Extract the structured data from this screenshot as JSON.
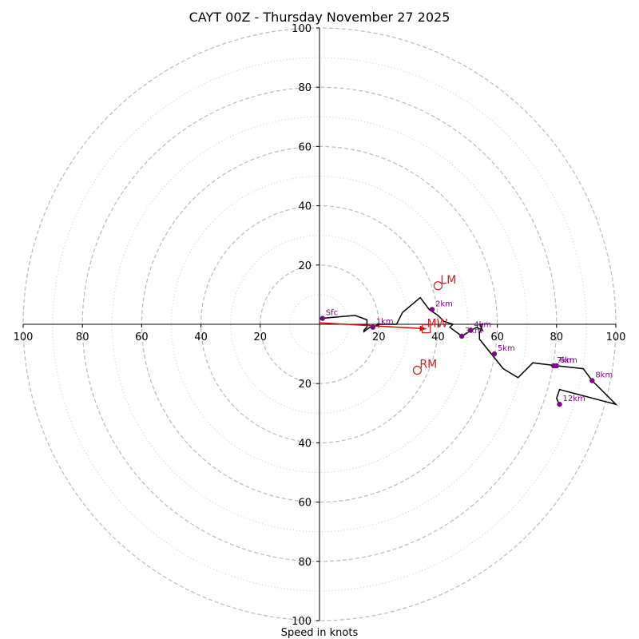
{
  "chart_data": {
    "type": "hodograph",
    "title": "CAYT 00Z - Thursday November 27 2025",
    "xlabel": "Speed in knots",
    "axis_range": [
      -100,
      100
    ],
    "rings_major": [
      20,
      40,
      60,
      80,
      100
    ],
    "rings_minor": [
      10,
      30,
      50,
      70,
      90
    ],
    "ticks": [
      {
        "value": -100,
        "label": "100"
      },
      {
        "value": -80,
        "label": "80"
      },
      {
        "value": -60,
        "label": "60"
      },
      {
        "value": -40,
        "label": "40"
      },
      {
        "value": -20,
        "label": "20"
      },
      {
        "value": 20,
        "label": "20"
      },
      {
        "value": 40,
        "label": "40"
      },
      {
        "value": 60,
        "label": "60"
      },
      {
        "value": 80,
        "label": "80"
      },
      {
        "value": 100,
        "label": "100"
      }
    ],
    "hodograph_uv": [
      [
        0.5,
        2
      ],
      [
        12,
        3
      ],
      [
        16,
        1.5
      ],
      [
        16,
        -1
      ],
      [
        15,
        -2
      ],
      [
        15,
        -2.5
      ],
      [
        17,
        -1
      ],
      [
        18,
        -1
      ],
      [
        20,
        0
      ],
      [
        26,
        0
      ],
      [
        28,
        4
      ],
      [
        34,
        9
      ],
      [
        37,
        5
      ],
      [
        40,
        3
      ],
      [
        42,
        1
      ],
      [
        45,
        0
      ],
      [
        44,
        -1
      ],
      [
        48,
        -4
      ],
      [
        53,
        -1
      ],
      [
        55,
        -2
      ],
      [
        54,
        0
      ],
      [
        55,
        0
      ],
      [
        54,
        -3
      ],
      [
        54,
        -5
      ],
      [
        58,
        -10
      ],
      [
        62,
        -15
      ],
      [
        67,
        -18
      ],
      [
        72,
        -13
      ],
      [
        80,
        -14
      ],
      [
        89,
        -15
      ],
      [
        92,
        -19
      ],
      [
        100,
        -27
      ],
      [
        81,
        -22
      ],
      [
        80,
        -25
      ],
      [
        81,
        -27
      ]
    ],
    "height_markers": [
      {
        "label": "Sfc",
        "u": 1,
        "v": 2
      },
      {
        "label": "1km",
        "u": 18,
        "v": -1
      },
      {
        "label": "2km",
        "u": 38,
        "v": 5
      },
      {
        "label": "3km",
        "u": 48,
        "v": -4
      },
      {
        "label": "4km",
        "u": 51,
        "v": -2
      },
      {
        "label": "5km",
        "u": 59,
        "v": -10
      },
      {
        "label": "6km",
        "u": 80,
        "v": -14
      },
      {
        "label": "7km",
        "u": 79,
        "v": -14
      },
      {
        "label": "8km",
        "u": 92,
        "v": -19
      },
      {
        "label": "12km",
        "u": 81,
        "v": -27
      }
    ],
    "storm_motions": {
      "LM": {
        "label": "LM",
        "u": 40,
        "v": 13
      },
      "RM": {
        "label": "RM",
        "u": 33,
        "v": -15.5
      },
      "MW": {
        "label": "MW",
        "u": 36,
        "v": -1.5
      }
    },
    "shear_vector": {
      "from": [
        0,
        0.5
      ],
      "to": [
        36,
        -1.5
      ],
      "color": "#dd0000"
    },
    "colors": {
      "hodograph": "#000000",
      "markers": "#7a0a84",
      "storm_motion": "#cc2222",
      "rings": "#bbbbbb"
    }
  }
}
